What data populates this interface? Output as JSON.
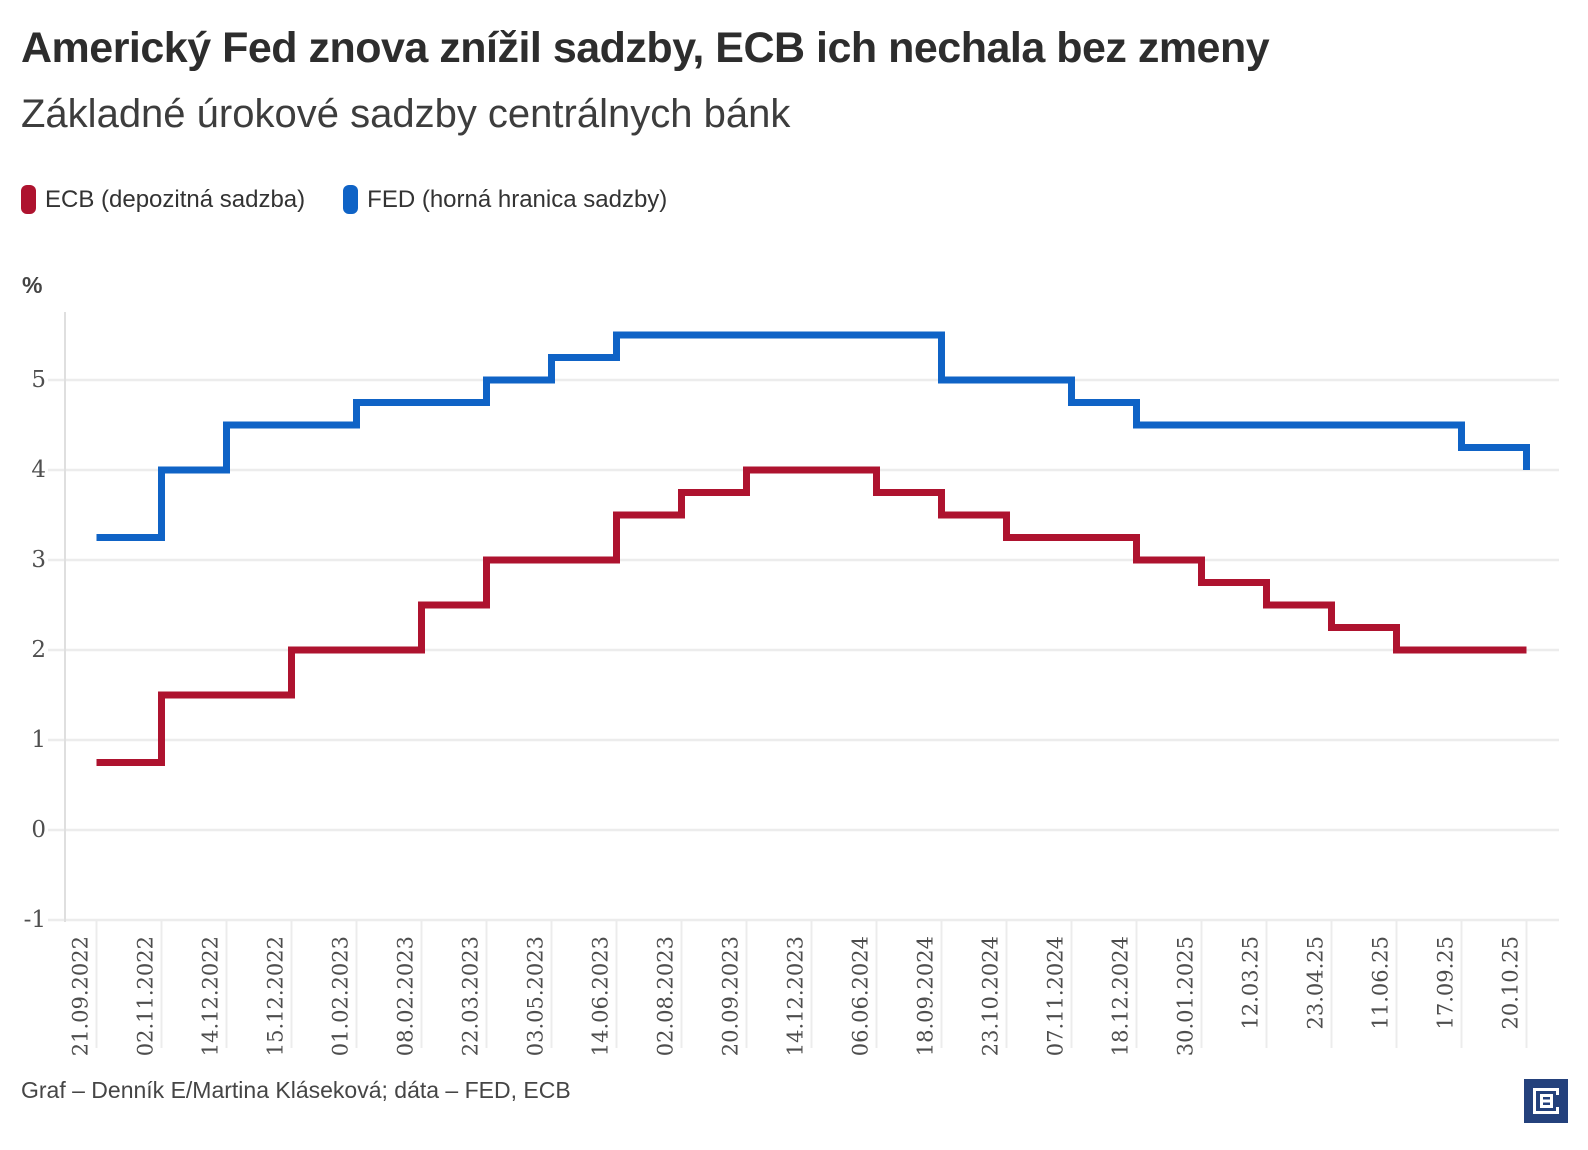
{
  "header": {
    "title": "Americký Fed znova znížil sadzby, ECB ich nechala bez zmeny",
    "subtitle": "Základné úrokové sadzby centrálnych bánk"
  },
  "chart_data": {
    "type": "line",
    "step": true,
    "unit": "%",
    "categories": [
      "21.09.2022",
      "02.11.2022",
      "14.12.2022",
      "15.12.2022",
      "01.02.2023",
      "08.02.2023",
      "22.03.2023",
      "03.05.2023",
      "14.06.2023",
      "02.08.2023",
      "20.09.2023",
      "14.12.2023",
      "06.06.2024",
      "18.09.2024",
      "23.10.2024",
      "07.11.2024",
      "18.12.2024",
      "30.01.2025",
      "12.03.25",
      "23.04.25",
      "11.06.25",
      "17.09.25",
      "20.10.25"
    ],
    "series": [
      {
        "name": "ECB (depozitná sadzba)",
        "color": "#ae132f",
        "values": [
          0.75,
          1.5,
          1.5,
          2,
          2,
          2.5,
          3,
          3,
          3.5,
          3.75,
          4,
          4,
          3.75,
          3.5,
          3.25,
          3.25,
          3,
          2.75,
          2.5,
          2.25,
          2,
          2,
          2
        ]
      },
      {
        "name": "FED (horná hranica sadzby)",
        "color": "#0f63c6",
        "values": [
          3.25,
          4,
          4.5,
          4.5,
          4.75,
          4.75,
          5,
          5.25,
          5.5,
          5.5,
          5.5,
          5.5,
          5.5,
          5,
          5,
          4.75,
          4.5,
          4.5,
          4.5,
          4.5,
          4.5,
          4.25,
          4
        ]
      }
    ],
    "y_ticks": [
      "5",
      "4",
      "3",
      "2",
      "1",
      "0",
      "-1"
    ],
    "ylim": [
      -1,
      5.75
    ],
    "grid": "horizontal",
    "legend_position": "top-left",
    "grid_color": "#ececec",
    "axis_color": "#dfdfdf"
  },
  "footer": {
    "credit": "Graf – Denník E/Martina Kláseková; dáta – FED, ECB",
    "logo_letter": "E",
    "logo_color": "#24417c"
  }
}
